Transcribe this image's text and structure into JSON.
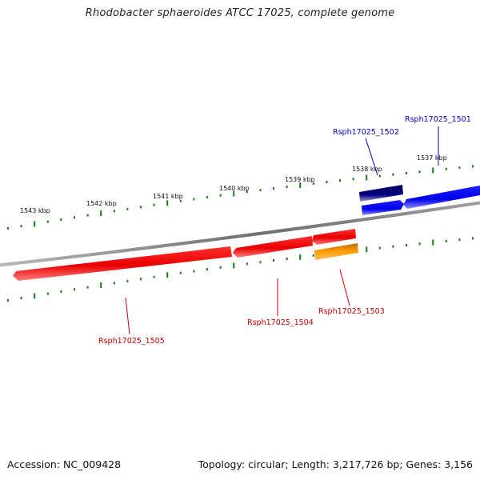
{
  "title": "Rhodobacter sphaeroides ATCC 17025, complete genome",
  "footer": {
    "accession": "Accession: NC_009428",
    "summary": "Topology: circular; Length: 3,217,726 bp; Genes: 3,156"
  },
  "colors": {
    "backbone": "#808080",
    "tick": "#1a7a1a",
    "forward_gene": "#0000ee",
    "forward_gene_dark": "#000070",
    "reverse_gene": "#ee0000",
    "reverse_gene_alt": "#ff8c00",
    "forward_label": "#0000cc",
    "reverse_label": "#cc0000"
  },
  "ticks": [
    {
      "label": "1537 kbp"
    },
    {
      "label": "1538 kbp"
    },
    {
      "label": "1539 kbp"
    },
    {
      "label": "1540 kbp"
    },
    {
      "label": "1541 kbp"
    },
    {
      "label": "1542 kbp"
    },
    {
      "label": "1543 kbp"
    }
  ],
  "genes": [
    {
      "id": "Rsph17025_1501",
      "strand": "forward",
      "color": "blue"
    },
    {
      "id": "Rsph17025_1502",
      "strand": "forward",
      "color": "navy"
    },
    {
      "id": "Rsph17025_1503",
      "strand": "reverse",
      "color": "orange"
    },
    {
      "id": "Rsph17025_1504",
      "strand": "reverse",
      "color": "red"
    },
    {
      "id": "Rsph17025_1505",
      "strand": "reverse",
      "color": "red"
    }
  ]
}
